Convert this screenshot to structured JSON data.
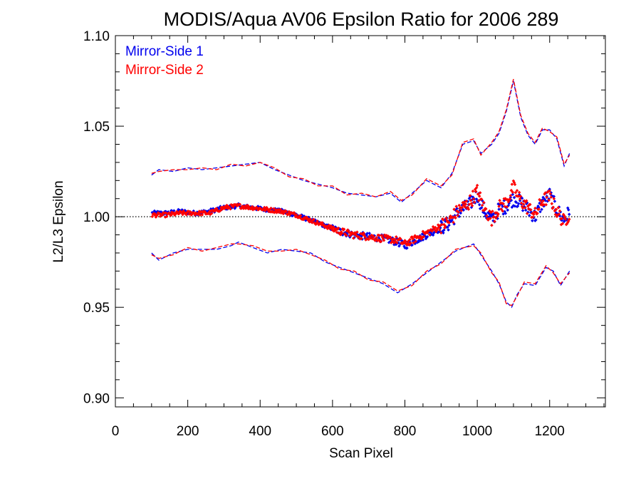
{
  "chart_data": {
    "type": "scatter",
    "title": "MODIS/Aqua AV06 Epsilon Ratio for 2006 289",
    "xlabel": "Scan Pixel",
    "ylabel": "L2/L3 Epsilon",
    "xlim": [
      0,
      1354
    ],
    "ylim": [
      0.895,
      1.1
    ],
    "x_ticks": [
      0,
      200,
      400,
      600,
      800,
      1000,
      1200
    ],
    "x_tick_labels": [
      "0",
      "200",
      "400",
      "600",
      "800",
      "1000",
      "1200"
    ],
    "y_ticks": [
      0.9,
      0.95,
      1.0,
      1.05,
      1.1
    ],
    "y_tick_labels": [
      "0.90",
      "0.95",
      "1.00",
      "1.05",
      "1.10"
    ],
    "reference_line": 1.0,
    "legend_position": "top-left",
    "series": [
      {
        "name": "Mirror-Side 1",
        "color": "#0000ee",
        "mean_points": [
          [
            100,
            1.002
          ],
          [
            140,
            1.002
          ],
          [
            180,
            1.003
          ],
          [
            220,
            1.002
          ],
          [
            260,
            1.003
          ],
          [
            300,
            1.005
          ],
          [
            340,
            1.006
          ],
          [
            380,
            1.005
          ],
          [
            420,
            1.004
          ],
          [
            460,
            1.003
          ],
          [
            500,
            1.001
          ],
          [
            540,
            0.998
          ],
          [
            580,
            0.995
          ],
          [
            620,
            0.992
          ],
          [
            660,
            0.99
          ],
          [
            700,
            0.989
          ],
          [
            740,
            0.988
          ],
          [
            780,
            0.986
          ],
          [
            800,
            0.984
          ],
          [
            840,
            0.988
          ],
          [
            880,
            0.992
          ],
          [
            920,
            0.996
          ],
          [
            950,
            1.003
          ],
          [
            975,
            1.006
          ],
          [
            1000,
            1.012
          ],
          [
            1020,
            1.003
          ],
          [
            1040,
            0.998
          ],
          [
            1060,
            1.004
          ],
          [
            1080,
            1.006
          ],
          [
            1100,
            1.01
          ],
          [
            1120,
            1.008
          ],
          [
            1140,
            1.004
          ],
          [
            1160,
            1.0
          ],
          [
            1180,
            1.008
          ],
          [
            1200,
            1.012
          ],
          [
            1220,
            1.004
          ],
          [
            1240,
            0.998
          ],
          [
            1255,
            1.003
          ]
        ],
        "upper_bound": [
          [
            100,
            1.023
          ],
          [
            120,
            1.026
          ],
          [
            160,
            1.025
          ],
          [
            200,
            1.027
          ],
          [
            240,
            1.026
          ],
          [
            280,
            1.027
          ],
          [
            320,
            1.028
          ],
          [
            360,
            1.029
          ],
          [
            400,
            1.03
          ],
          [
            440,
            1.026
          ],
          [
            480,
            1.023
          ],
          [
            520,
            1.02
          ],
          [
            560,
            1.018
          ],
          [
            600,
            1.016
          ],
          [
            640,
            1.013
          ],
          [
            680,
            1.012
          ],
          [
            720,
            1.011
          ],
          [
            760,
            1.013
          ],
          [
            790,
            1.008
          ],
          [
            820,
            1.013
          ],
          [
            860,
            1.02
          ],
          [
            900,
            1.016
          ],
          [
            930,
            1.024
          ],
          [
            960,
            1.04
          ],
          [
            990,
            1.042
          ],
          [
            1010,
            1.035
          ],
          [
            1040,
            1.04
          ],
          [
            1060,
            1.046
          ],
          [
            1080,
            1.058
          ],
          [
            1100,
            1.075
          ],
          [
            1120,
            1.055
          ],
          [
            1140,
            1.045
          ],
          [
            1160,
            1.04
          ],
          [
            1180,
            1.048
          ],
          [
            1200,
            1.048
          ],
          [
            1220,
            1.043
          ],
          [
            1240,
            1.028
          ],
          [
            1255,
            1.035
          ]
        ],
        "lower_bound": [
          [
            100,
            0.98
          ],
          [
            120,
            0.976
          ],
          [
            160,
            0.98
          ],
          [
            200,
            0.982
          ],
          [
            240,
            0.982
          ],
          [
            280,
            0.982
          ],
          [
            320,
            0.984
          ],
          [
            340,
            0.986
          ],
          [
            380,
            0.983
          ],
          [
            420,
            0.98
          ],
          [
            460,
            0.982
          ],
          [
            500,
            0.981
          ],
          [
            540,
            0.98
          ],
          [
            580,
            0.975
          ],
          [
            620,
            0.972
          ],
          [
            660,
            0.969
          ],
          [
            700,
            0.966
          ],
          [
            740,
            0.963
          ],
          [
            780,
            0.958
          ],
          [
            820,
            0.963
          ],
          [
            860,
            0.969
          ],
          [
            900,
            0.975
          ],
          [
            940,
            0.981
          ],
          [
            990,
            0.985
          ],
          [
            1010,
            0.979
          ],
          [
            1040,
            0.97
          ],
          [
            1060,
            0.963
          ],
          [
            1080,
            0.953
          ],
          [
            1095,
            0.95
          ],
          [
            1110,
            0.957
          ],
          [
            1130,
            0.963
          ],
          [
            1160,
            0.962
          ],
          [
            1190,
            0.972
          ],
          [
            1210,
            0.97
          ],
          [
            1230,
            0.962
          ],
          [
            1255,
            0.97
          ]
        ]
      },
      {
        "name": "Mirror-Side 2",
        "color": "#ff0000",
        "mean_points": [
          [
            100,
            1.001
          ],
          [
            140,
            1.001
          ],
          [
            180,
            1.002
          ],
          [
            220,
            1.002
          ],
          [
            260,
            1.002
          ],
          [
            300,
            1.005
          ],
          [
            340,
            1.006
          ],
          [
            380,
            1.005
          ],
          [
            420,
            1.004
          ],
          [
            460,
            1.003
          ],
          [
            500,
            1.001
          ],
          [
            540,
            0.998
          ],
          [
            580,
            0.995
          ],
          [
            620,
            0.992
          ],
          [
            660,
            0.99
          ],
          [
            700,
            0.989
          ],
          [
            740,
            0.988
          ],
          [
            780,
            0.987
          ],
          [
            800,
            0.985
          ],
          [
            840,
            0.989
          ],
          [
            880,
            0.993
          ],
          [
            920,
            0.997
          ],
          [
            950,
            1.004
          ],
          [
            975,
            1.007
          ],
          [
            1000,
            1.014
          ],
          [
            1020,
            1.004
          ],
          [
            1040,
            0.999
          ],
          [
            1060,
            1.005
          ],
          [
            1080,
            1.008
          ],
          [
            1100,
            1.016
          ],
          [
            1120,
            1.009
          ],
          [
            1140,
            1.005
          ],
          [
            1160,
            1.001
          ],
          [
            1180,
            1.009
          ],
          [
            1200,
            1.011
          ],
          [
            1220,
            1.003
          ],
          [
            1240,
            0.997
          ],
          [
            1255,
            1.002
          ]
        ],
        "upper_bound": [
          [
            100,
            1.024
          ],
          [
            120,
            1.025
          ],
          [
            160,
            1.026
          ],
          [
            200,
            1.026
          ],
          [
            240,
            1.027
          ],
          [
            280,
            1.026
          ],
          [
            320,
            1.029
          ],
          [
            360,
            1.028
          ],
          [
            400,
            1.03
          ],
          [
            440,
            1.027
          ],
          [
            480,
            1.022
          ],
          [
            520,
            1.021
          ],
          [
            560,
            1.017
          ],
          [
            600,
            1.017
          ],
          [
            640,
            1.012
          ],
          [
            680,
            1.013
          ],
          [
            720,
            1.011
          ],
          [
            760,
            1.014
          ],
          [
            790,
            1.009
          ],
          [
            820,
            1.012
          ],
          [
            860,
            1.021
          ],
          [
            900,
            1.017
          ],
          [
            930,
            1.023
          ],
          [
            960,
            1.041
          ],
          [
            990,
            1.043
          ],
          [
            1010,
            1.034
          ],
          [
            1040,
            1.041
          ],
          [
            1060,
            1.047
          ],
          [
            1080,
            1.059
          ],
          [
            1100,
            1.076
          ],
          [
            1120,
            1.056
          ],
          [
            1140,
            1.046
          ],
          [
            1160,
            1.041
          ],
          [
            1180,
            1.049
          ],
          [
            1200,
            1.047
          ],
          [
            1220,
            1.044
          ],
          [
            1240,
            1.029
          ],
          [
            1255,
            1.034
          ]
        ],
        "lower_bound": [
          [
            100,
            0.979
          ],
          [
            120,
            0.977
          ],
          [
            160,
            0.979
          ],
          [
            200,
            0.983
          ],
          [
            240,
            0.981
          ],
          [
            280,
            0.983
          ],
          [
            320,
            0.985
          ],
          [
            340,
            0.985
          ],
          [
            380,
            0.984
          ],
          [
            420,
            0.981
          ],
          [
            460,
            0.981
          ],
          [
            500,
            0.982
          ],
          [
            540,
            0.979
          ],
          [
            580,
            0.976
          ],
          [
            620,
            0.971
          ],
          [
            660,
            0.97
          ],
          [
            700,
            0.965
          ],
          [
            740,
            0.964
          ],
          [
            780,
            0.959
          ],
          [
            820,
            0.962
          ],
          [
            860,
            0.97
          ],
          [
            900,
            0.974
          ],
          [
            940,
            0.982
          ],
          [
            990,
            0.984
          ],
          [
            1010,
            0.98
          ],
          [
            1040,
            0.969
          ],
          [
            1060,
            0.964
          ],
          [
            1080,
            0.952
          ],
          [
            1095,
            0.951
          ],
          [
            1110,
            0.956
          ],
          [
            1130,
            0.964
          ],
          [
            1160,
            0.963
          ],
          [
            1190,
            0.973
          ],
          [
            1210,
            0.969
          ],
          [
            1230,
            0.963
          ],
          [
            1255,
            0.969
          ]
        ]
      }
    ]
  }
}
